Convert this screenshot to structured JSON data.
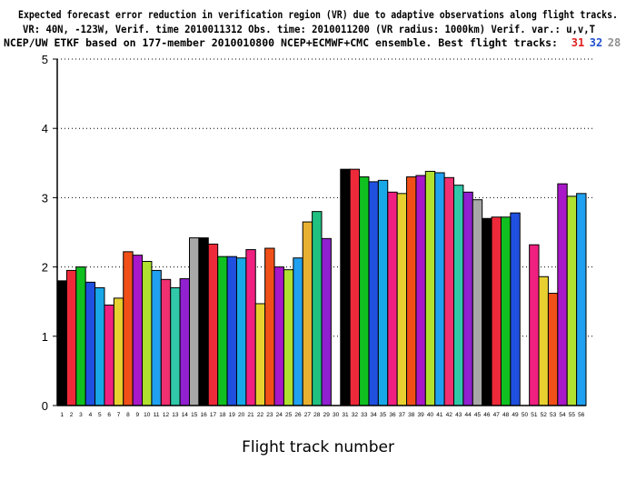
{
  "chart_data": {
    "type": "bar",
    "title_lines": [
      "Expected forecast error reduction in verification region (VR) due to adaptive observations along flight tracks.",
      "VR: 40N, -123W, Verif. time 2010011312 Obs. time: 2010011200 (VR radius: 1000km)  Verif. var.: u,v,T",
      "NCEP/UW ETKF based on 177-member 2010010800 NCEP+ECMWF+CMC ensemble. Best flight tracks:"
    ],
    "best_tracks": [
      {
        "label": "31",
        "color": "#e02020"
      },
      {
        "label": "32",
        "color": "#2050d0"
      },
      {
        "label": "28",
        "color": "#909090"
      }
    ],
    "xlabel": "Flight track number",
    "ylabel": "",
    "ylim": [
      0,
      5
    ],
    "yticks": [
      0,
      1,
      2,
      3,
      4,
      5
    ],
    "grid": "horizontal dotted",
    "categories": [
      "1",
      "2",
      "3",
      "4",
      "5",
      "6",
      "7",
      "8",
      "9",
      "10",
      "11",
      "12",
      "13",
      "14",
      "15",
      "16",
      "17",
      "18",
      "19",
      "20",
      "21",
      "22",
      "23",
      "24",
      "25",
      "26",
      "27",
      "28",
      "29",
      "30",
      "31",
      "32",
      "33",
      "34",
      "35",
      "36",
      "37",
      "38",
      "39",
      "40",
      "41",
      "42",
      "43",
      "44",
      "45",
      "46",
      "47",
      "48",
      "49",
      "50",
      "51",
      "52",
      "53",
      "54",
      "55",
      "56"
    ],
    "values": [
      1.8,
      1.95,
      2.0,
      1.78,
      1.7,
      1.45,
      1.55,
      2.22,
      2.17,
      2.08,
      1.95,
      1.82,
      1.7,
      1.83,
      2.42,
      2.42,
      2.33,
      2.15,
      2.15,
      2.13,
      2.25,
      1.47,
      2.27,
      2.0,
      1.96,
      2.13,
      2.65,
      2.8,
      2.41,
      0,
      3.41,
      3.41,
      3.3,
      3.23,
      3.25,
      3.08,
      3.06,
      3.3,
      3.32,
      3.38,
      3.36,
      3.29,
      3.18,
      3.08,
      2.97,
      2.7,
      2.72,
      2.72,
      2.78,
      0,
      2.32,
      1.86,
      1.62,
      3.2,
      3.02,
      3.06
    ],
    "colors": [
      "#000000",
      "#ee2a3a",
      "#10c020",
      "#2050e0",
      "#18a8e8",
      "#f02080",
      "#e8d030",
      "#f05018",
      "#a818c8",
      "#b0e030",
      "#20a0f0",
      "#f03070",
      "#30c8a8",
      "#9020d0",
      "#a8a8a8",
      "#000000",
      "#ee2a3a",
      "#10c020",
      "#2050e0",
      "#18a8e8",
      "#f02080",
      "#e8d030",
      "#f05018",
      "#a818c8",
      "#b0e030",
      "#20a0f0",
      "#e8b030",
      "#20c080",
      "#9020d0",
      "#a8a8a8",
      "#000000",
      "#ee2a3a",
      "#10c020",
      "#2050e0",
      "#18a8e8",
      "#f02080",
      "#e8d030",
      "#f05018",
      "#a818c8",
      "#b0e030",
      "#20a0f0",
      "#f03070",
      "#30c8a8",
      "#9020d0",
      "#a8a8a8",
      "#000000",
      "#ee2a3a",
      "#10c020",
      "#2050e0",
      "#a8a8a8",
      "#f02080",
      "#e8d030",
      "#f05018",
      "#a818c8",
      "#b0e030",
      "#20a0f0"
    ]
  }
}
